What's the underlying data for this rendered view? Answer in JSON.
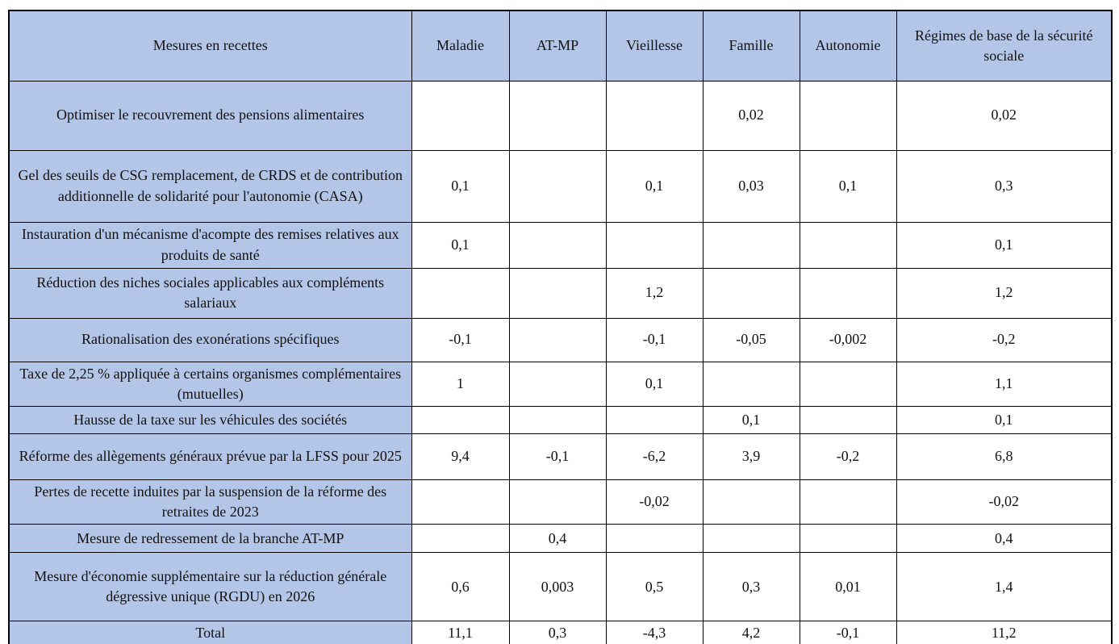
{
  "colors": {
    "cell_blue": "#b4c6e7",
    "border": "#000000"
  },
  "table": {
    "columns": [
      "Mesures en recettes",
      "Maladie",
      "AT-MP",
      "Vieillesse",
      "Famille",
      "Autonomie",
      "Régimes de base de la sécurité sociale"
    ],
    "rows": [
      {
        "label": "Optimiser le recouvrement des pensions alimentaires",
        "values": [
          "",
          "",
          "",
          "0,02",
          "",
          "0,02"
        ]
      },
      {
        "label": "Gel des seuils de CSG remplacement, de CRDS et de contribution additionnelle de solidarité pour l'autonomie (CASA)",
        "values": [
          "0,1",
          "",
          "0,1",
          "0,03",
          "0,1",
          "0,3"
        ]
      },
      {
        "label": "Instauration d'un mécanisme d'acompte des remises relatives aux produits de santé",
        "values": [
          "0,1",
          "",
          "",
          "",
          "",
          "0,1"
        ]
      },
      {
        "label": "Réduction des niches sociales applicables aux compléments salariaux",
        "values": [
          "",
          "",
          "1,2",
          "",
          "",
          "1,2"
        ]
      },
      {
        "label": "Rationalisation des exonérations spécifiques",
        "values": [
          "-0,1",
          "",
          "-0,1",
          "-0,05",
          "-0,002",
          "-0,2"
        ]
      },
      {
        "label": "Taxe de 2,25 % appliquée à certains organismes complémentaires (mutuelles)",
        "values": [
          "1",
          "",
          "0,1",
          "",
          "",
          "1,1"
        ]
      },
      {
        "label": "Hausse de la taxe sur les véhicules des sociétés",
        "values": [
          "",
          "",
          "",
          "0,1",
          "",
          "0,1"
        ]
      },
      {
        "label": "Réforme des allègements généraux prévue par la LFSS pour 2025",
        "values": [
          "9,4",
          "-0,1",
          "-6,2",
          "3,9",
          "-0,2",
          "6,8"
        ]
      },
      {
        "label": "Pertes de recette induites par la suspension de la réforme des retraites de 2023",
        "values": [
          "",
          "",
          "-0,02",
          "",
          "",
          "-0,02"
        ]
      },
      {
        "label": "Mesure de redressement de la branche AT-MP",
        "values": [
          "",
          "0,4",
          "",
          "",
          "",
          "0,4"
        ]
      },
      {
        "label": "Mesure d'économie supplémentaire sur la réduction générale dégressive unique (RGDU) en 2026",
        "values": [
          "0,6",
          "0,003",
          "0,5",
          "0,3",
          "0,01",
          "1,4"
        ]
      },
      {
        "label": "Total",
        "values": [
          "11,1",
          "0,3",
          "-4,3",
          "4,2",
          "-0,1",
          "11,2"
        ]
      }
    ]
  }
}
